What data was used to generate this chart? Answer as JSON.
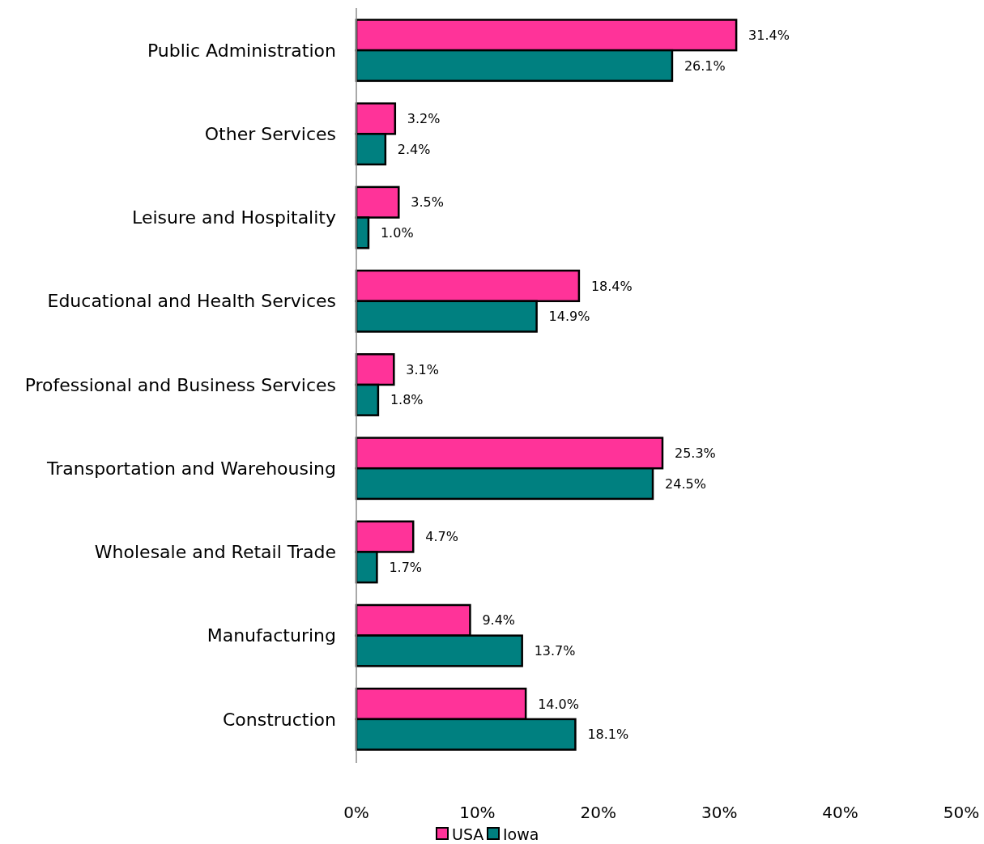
{
  "chart_data": {
    "type": "bar",
    "orientation": "horizontal",
    "categories": [
      "Public Administration",
      "Other Services",
      "Leisure and Hospitality",
      "Educational and Health Services",
      "Professional and Business Services",
      "Transportation and Warehousing",
      "Wholesale and Retail Trade",
      "Manufacturing",
      "Construction"
    ],
    "series": [
      {
        "name": "USA",
        "color": "#ff3399",
        "values": [
          31.4,
          3.2,
          3.5,
          18.4,
          3.1,
          25.3,
          4.7,
          9.4,
          14.0
        ],
        "value_labels": [
          "31.4%",
          "3.2%",
          "3.5%",
          "18.4%",
          "3.1%",
          "25.3%",
          "4.7%",
          "9.4%",
          "14.0%"
        ]
      },
      {
        "name": "Iowa",
        "color": "#008080",
        "values": [
          26.1,
          2.4,
          1.0,
          14.9,
          1.8,
          24.5,
          1.7,
          13.7,
          18.1
        ],
        "value_labels": [
          "26.1%",
          "2.4%",
          "1.0%",
          "14.9%",
          "1.8%",
          "24.5%",
          "1.7%",
          "13.7%",
          "18.1%"
        ]
      }
    ],
    "xlim": [
      0,
      50
    ],
    "xticks": [
      {
        "value": 0,
        "label": "0%"
      },
      {
        "value": 10,
        "label": "10%"
      },
      {
        "value": 20,
        "label": "20%"
      },
      {
        "value": 30,
        "label": "30%"
      },
      {
        "value": 40,
        "label": "40%"
      },
      {
        "value": 50,
        "label": "50%"
      }
    ],
    "grid": false,
    "legend": "bottom"
  }
}
